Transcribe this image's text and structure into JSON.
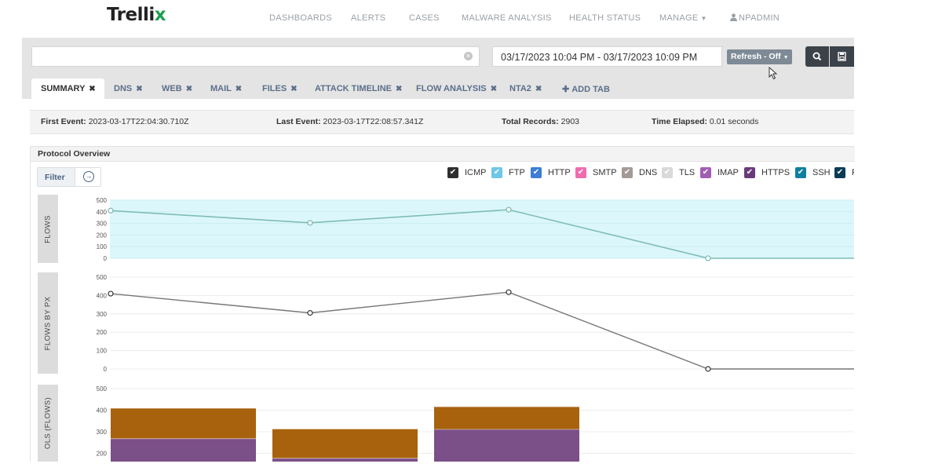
{
  "brand": {
    "name": "Trelli",
    "x_mark": "x"
  },
  "nav": {
    "items": [
      {
        "label": "DASHBOARDS"
      },
      {
        "label": "ALERTS"
      },
      {
        "label": "CASES"
      },
      {
        "label": "MALWARE ANALYSIS"
      },
      {
        "label": "HEALTH STATUS"
      },
      {
        "label": "MANAGE"
      }
    ],
    "user": "NPADMIN"
  },
  "toolbar": {
    "search_value": "",
    "date_range": "03/17/2023 10:04 PM - 03/17/2023 10:09 PM",
    "refresh_label": "Refresh - Off"
  },
  "tabs": [
    {
      "label": "SUMMARY",
      "active": true
    },
    {
      "label": "DNS"
    },
    {
      "label": "WEB"
    },
    {
      "label": "MAIL"
    },
    {
      "label": "FILES"
    },
    {
      "label": "ATTACK TIMELINE"
    },
    {
      "label": "FLOW ANALYSIS"
    },
    {
      "label": "NTA2"
    }
  ],
  "add_tab_label": "ADD TAB",
  "stats": {
    "first_event_label": "First Event:",
    "first_event": "2023-03-17T22:04:30.710Z",
    "last_event_label": "Last Event:",
    "last_event": "2023-03-17T22:08:57.341Z",
    "total_records_label": "Total Records:",
    "total_records": "2903",
    "time_elapsed_label": "Time Elapsed:",
    "time_elapsed": "0.01 seconds"
  },
  "panel": {
    "title": "Protocol Overview",
    "filter_label": "Filter"
  },
  "legend": [
    {
      "label": "ICMP",
      "color": "#2f2f2f"
    },
    {
      "label": "FTP",
      "color": "#6ec6e8"
    },
    {
      "label": "HTTP",
      "color": "#3b7dd8"
    },
    {
      "label": "SMTP",
      "color": "#f06bb0"
    },
    {
      "label": "DNS",
      "color": "#a39a96"
    },
    {
      "label": "TLS",
      "color": "#d9d9d9"
    },
    {
      "label": "IMAP",
      "color": "#a25eb5"
    },
    {
      "label": "HTTPS",
      "color": "#6b3a7c"
    },
    {
      "label": "SSH",
      "color": "#0e7fa0"
    },
    {
      "label": "F",
      "color": "#0c3b55"
    }
  ],
  "chart_data": [
    {
      "type": "area",
      "ylabel": "FLOWS",
      "ylim": [
        0,
        500
      ],
      "yticks": [
        "0",
        "100",
        "200",
        "300",
        "400",
        "500"
      ],
      "series": [
        {
          "values": [
            410,
            305,
            418,
            0,
            0
          ]
        }
      ],
      "colors": {
        "fill": "#dcf7fb",
        "line": "#7fbdb5"
      }
    },
    {
      "type": "line",
      "ylabel": "FLOWS BY PX",
      "ylim": [
        0,
        500
      ],
      "yticks": [
        "0",
        "100",
        "200",
        "300",
        "400",
        "500"
      ],
      "series": [
        {
          "values": [
            410,
            305,
            418,
            0,
            0
          ]
        }
      ],
      "colors": {
        "line": "#777777"
      }
    },
    {
      "type": "bar",
      "ylabel": "OLS (FLOWS)",
      "ylim": [
        100,
        500
      ],
      "yticks": [
        "200",
        "300",
        "400",
        "500"
      ],
      "series": [
        {
          "values": [
            268,
            177,
            311
          ],
          "color": "#7b4f88"
        },
        {
          "values": [
            140,
            135,
            104
          ],
          "color": "#a8620d"
        }
      ]
    }
  ]
}
